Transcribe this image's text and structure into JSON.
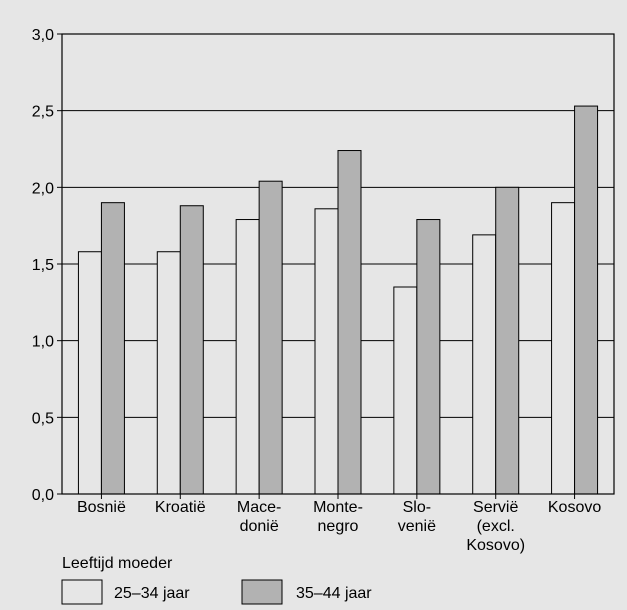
{
  "chart_data": {
    "type": "bar",
    "categories": [
      [
        "Bosnië"
      ],
      [
        "Kroatië"
      ],
      [
        "Mace-",
        "donië"
      ],
      [
        "Monte-",
        "negro"
      ],
      [
        "Slo-",
        "venië"
      ],
      [
        "Servië",
        "(excl.",
        "Kosovo)"
      ],
      [
        "Kosovo"
      ]
    ],
    "series": [
      {
        "name": "25–34 jaar",
        "color": "#e6e6e6",
        "values": [
          1.58,
          1.58,
          1.79,
          1.86,
          1.35,
          1.69,
          1.9
        ]
      },
      {
        "name": "35–44 jaar",
        "color": "#b2b2b2",
        "values": [
          1.9,
          1.88,
          2.04,
          2.24,
          1.79,
          2.0,
          2.53
        ]
      }
    ],
    "ylim": [
      0,
      3
    ],
    "yticks": [
      "0,0",
      "0,5",
      "1,0",
      "1,5",
      "2,0",
      "2,5",
      "3,0"
    ],
    "grid": true,
    "legend": {
      "title": "Leeftijd moeder",
      "placement": "bottom-left"
    }
  }
}
